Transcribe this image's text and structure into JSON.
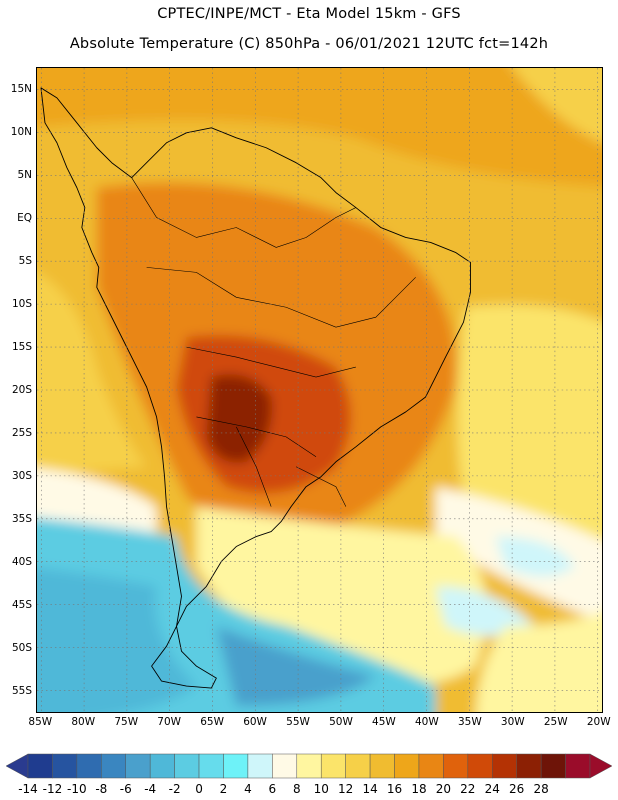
{
  "header": {
    "line1": "CPTEC/INPE/MCT -  Eta Model 15km - GFS",
    "line2": "Absolute Temperature (C) 850hPa - 06/01/2021 12UTC fct=142h"
  },
  "map": {
    "lat_labels": [
      "15N",
      "10N",
      "5N",
      "EQ",
      "5S",
      "10S",
      "15S",
      "20S",
      "25S",
      "30S",
      "35S",
      "40S",
      "45S",
      "50S",
      "55S"
    ],
    "lat_values": [
      15,
      10,
      5,
      0,
      -5,
      -10,
      -15,
      -20,
      -25,
      -30,
      -35,
      -40,
      -45,
      -50,
      -55
    ],
    "lon_labels": [
      "85W",
      "80W",
      "75W",
      "70W",
      "65W",
      "60W",
      "55W",
      "50W",
      "45W",
      "40W",
      "35W",
      "30W",
      "25W",
      "20W"
    ],
    "lon_values": [
      -85,
      -80,
      -75,
      -70,
      -65,
      -60,
      -55,
      -50,
      -45,
      -40,
      -35,
      -30,
      -25,
      -20
    ],
    "lon_range": [
      -85.5,
      -19.5
    ],
    "lat_range": [
      -57.5,
      17.5
    ]
  },
  "colorbar": {
    "labels": [
      "-14",
      "-12",
      "-10",
      "-8",
      "-6",
      "-4",
      "-2",
      "0",
      "2",
      "4",
      "6",
      "8",
      "10",
      "12",
      "14",
      "16",
      "18",
      "20",
      "22",
      "24",
      "26",
      "28"
    ],
    "colors": [
      "#1f3c8f",
      "#2654a0",
      "#2f6cb0",
      "#3a86c0",
      "#4aa0cc",
      "#4fb8d8",
      "#5ccce2",
      "#66dcec",
      "#6ef2f8",
      "#cff6fa",
      "#fffae6",
      "#fff6a0",
      "#fbe46a",
      "#f6d048",
      "#f0bc30",
      "#eea61a",
      "#e98614",
      "#e0620c",
      "#d04a08",
      "#b43204",
      "#8c2004",
      "#6e1408",
      "#9a0c2a"
    ],
    "low_arrow_color": "#2a3b8f",
    "high_arrow_color": "#9a0c2a"
  }
}
